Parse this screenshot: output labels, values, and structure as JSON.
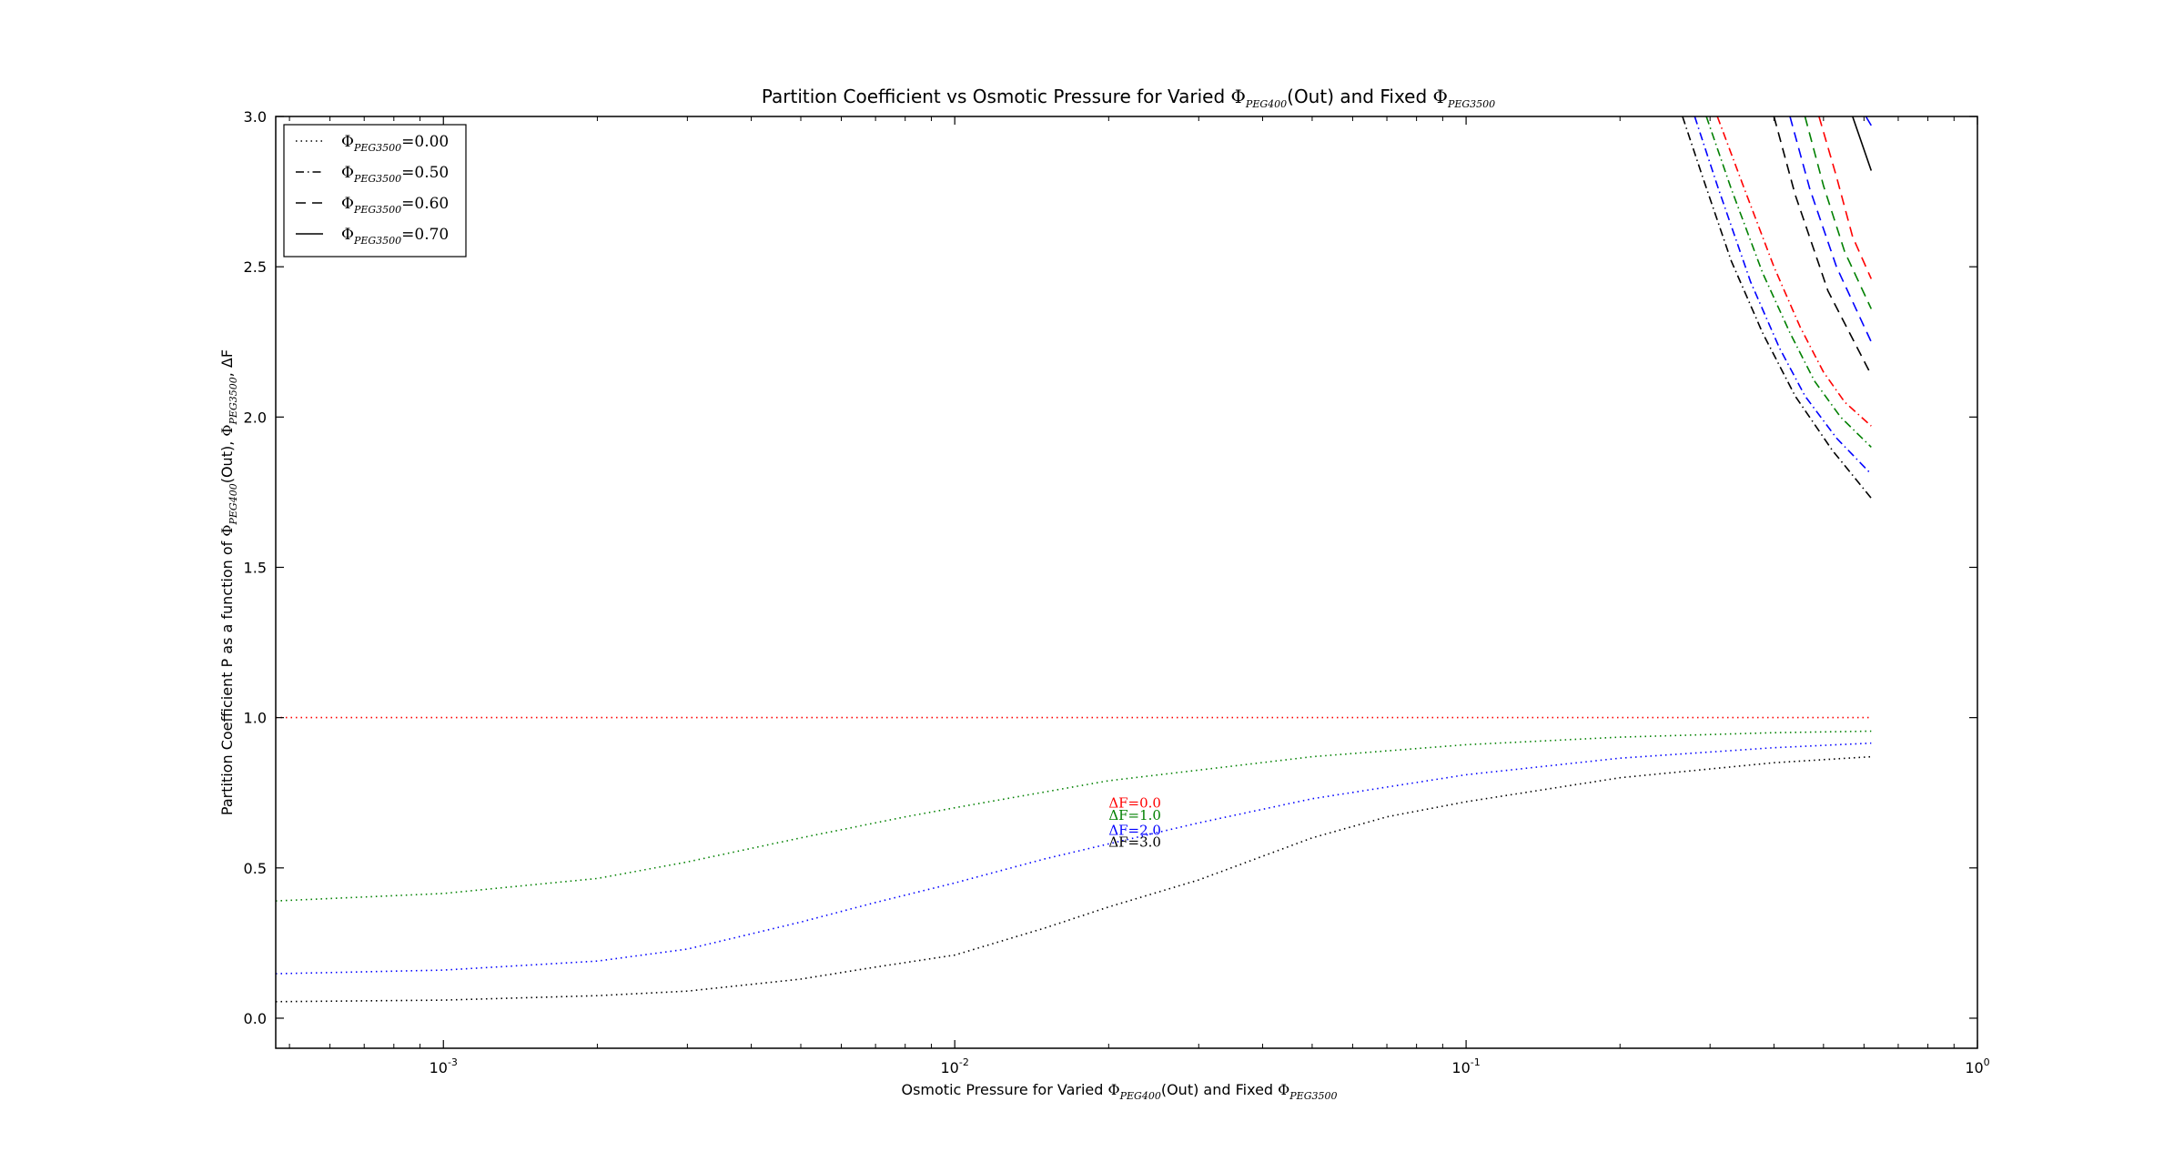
{
  "chart_data": {
    "type": "line",
    "title": {
      "prefix": "Partition Coefficient vs Osmotic Pressure for Varied ",
      "phi1": "Φ",
      "sub1": "PEG400",
      "mid": "(Out) and Fixed ",
      "phi2": "Φ",
      "sub2": "PEG3500"
    },
    "xlabel": {
      "prefix": "Osmotic Pressure for Varied ",
      "phi1": "Φ",
      "sub1": "PEG400",
      "mid": "(Out) and Fixed ",
      "phi2": "Φ",
      "sub2": "PEG3500"
    },
    "ylabel": {
      "prefix": "Partition Coefficient P as a function of ",
      "phi1": "Φ",
      "sub1": "PEG400",
      "mid": "(Out), ",
      "phi2": "Φ",
      "sub2": "PEG3500",
      "suffix": ", ΔF"
    },
    "xscale": "log",
    "xlim": [
      0.00047,
      1.0
    ],
    "ylim": [
      -0.1,
      3.0
    ],
    "xticks": [
      {
        "value": 0.001,
        "base": "10",
        "exp": "-3"
      },
      {
        "value": 0.01,
        "base": "10",
        "exp": "-2"
      },
      {
        "value": 0.1,
        "base": "10",
        "exp": "-1"
      },
      {
        "value": 1.0,
        "base": "10",
        "exp": "0"
      }
    ],
    "yticks": [
      "0.0",
      "0.5",
      "1.0",
      "1.5",
      "2.0",
      "2.5",
      "3.0"
    ],
    "grid": false,
    "legend": {
      "placement": "top-left",
      "entries": [
        {
          "phi": "Φ",
          "sub": "PEG3500",
          "eq": "=0.00",
          "dash": "dotted"
        },
        {
          "phi": "Φ",
          "sub": "PEG3500",
          "eq": "=0.50",
          "dash": "dashdot"
        },
        {
          "phi": "Φ",
          "sub": "PEG3500",
          "eq": "=0.60",
          "dash": "dashed"
        },
        {
          "phi": "Φ",
          "sub": "PEG3500",
          "eq": "=0.70",
          "dash": "solid"
        }
      ]
    },
    "annotations": [
      {
        "text": "ΔF=0.0",
        "color": "#ff0000",
        "x": 0.02,
        "y": 0.7
      },
      {
        "text": "ΔF=1.0",
        "color": "#008000",
        "x": 0.02,
        "y": 0.66
      },
      {
        "text": "ΔF=2.0",
        "color": "#0000ff",
        "x": 0.02,
        "y": 0.61
      },
      {
        "text": "ΔF=3.0",
        "color": "#000000",
        "x": 0.02,
        "y": 0.57
      }
    ],
    "colors": {
      "dF0": "#ff0000",
      "dF1": "#008000",
      "dF2": "#0000ff",
      "dF3": "#000000"
    },
    "series": [
      {
        "phi3500": 0.0,
        "dF": 0.0,
        "color": "#ff0000",
        "dash": "dotted",
        "x": [
          0.00047,
          0.001,
          0.002,
          0.005,
          0.01,
          0.02,
          0.05,
          0.1,
          0.2,
          0.4,
          0.62
        ],
        "y": [
          1.0,
          1.0,
          1.0,
          1.0,
          1.0,
          1.0,
          1.0,
          1.0,
          1.0,
          1.0,
          1.0
        ]
      },
      {
        "phi3500": 0.0,
        "dF": 1.0,
        "color": "#008000",
        "dash": "dotted",
        "x": [
          0.00047,
          0.001,
          0.002,
          0.003,
          0.005,
          0.008,
          0.01,
          0.02,
          0.05,
          0.1,
          0.2,
          0.4,
          0.62
        ],
        "y": [
          0.39,
          0.415,
          0.465,
          0.52,
          0.6,
          0.67,
          0.7,
          0.79,
          0.87,
          0.91,
          0.935,
          0.95,
          0.955
        ]
      },
      {
        "phi3500": 0.0,
        "dF": 2.0,
        "color": "#0000ff",
        "dash": "dotted",
        "x": [
          0.00047,
          0.001,
          0.002,
          0.003,
          0.005,
          0.007,
          0.01,
          0.015,
          0.02,
          0.03,
          0.05,
          0.1,
          0.2,
          0.4,
          0.62
        ],
        "y": [
          0.148,
          0.16,
          0.19,
          0.23,
          0.32,
          0.385,
          0.45,
          0.53,
          0.58,
          0.65,
          0.73,
          0.81,
          0.865,
          0.9,
          0.915
        ]
      },
      {
        "phi3500": 0.0,
        "dF": 3.0,
        "color": "#000000",
        "dash": "dotted",
        "x": [
          0.00047,
          0.001,
          0.002,
          0.003,
          0.005,
          0.007,
          0.01,
          0.015,
          0.02,
          0.03,
          0.05,
          0.07,
          0.1,
          0.2,
          0.4,
          0.62
        ],
        "y": [
          0.055,
          0.06,
          0.075,
          0.09,
          0.13,
          0.17,
          0.21,
          0.3,
          0.37,
          0.46,
          0.6,
          0.67,
          0.72,
          0.8,
          0.85,
          0.87
        ]
      },
      {
        "phi3500": 0.5,
        "dF": 0.0,
        "color": "#ff0000",
        "dash": "dashdot",
        "x": [
          0.31,
          0.35,
          0.4,
          0.45,
          0.5,
          0.55,
          0.62
        ],
        "y": [
          3.0,
          2.76,
          2.5,
          2.3,
          2.15,
          2.05,
          1.97
        ]
      },
      {
        "phi3500": 0.5,
        "dF": 1.0,
        "color": "#008000",
        "dash": "dashdot",
        "x": [
          0.295,
          0.33,
          0.38,
          0.43,
          0.48,
          0.54,
          0.62
        ],
        "y": [
          3.0,
          2.76,
          2.48,
          2.28,
          2.12,
          2.0,
          1.9
        ]
      },
      {
        "phi3500": 0.5,
        "dF": 2.0,
        "color": "#0000ff",
        "dash": "dashdot",
        "x": [
          0.28,
          0.31,
          0.36,
          0.41,
          0.46,
          0.53,
          0.62
        ],
        "y": [
          3.0,
          2.77,
          2.45,
          2.23,
          2.07,
          1.93,
          1.81
        ]
      },
      {
        "phi3500": 0.5,
        "dF": 3.0,
        "color": "#000000",
        "dash": "dashdot",
        "x": [
          0.265,
          0.29,
          0.33,
          0.38,
          0.44,
          0.52,
          0.62
        ],
        "y": [
          3.0,
          2.8,
          2.52,
          2.28,
          2.07,
          1.89,
          1.73
        ]
      },
      {
        "phi3500": 0.6,
        "dF": 0.0,
        "color": "#ff0000",
        "dash": "dashed",
        "x": [
          0.49,
          0.53,
          0.57,
          0.62
        ],
        "y": [
          3.0,
          2.8,
          2.6,
          2.46
        ]
      },
      {
        "phi3500": 0.6,
        "dF": 1.0,
        "color": "#008000",
        "dash": "dashed",
        "x": [
          0.46,
          0.5,
          0.55,
          0.62
        ],
        "y": [
          3.0,
          2.77,
          2.55,
          2.36
        ]
      },
      {
        "phi3500": 0.6,
        "dF": 2.0,
        "color": "#0000ff",
        "dash": "dashed",
        "x": [
          0.43,
          0.47,
          0.53,
          0.62
        ],
        "y": [
          3.0,
          2.76,
          2.5,
          2.25
        ]
      },
      {
        "phi3500": 0.6,
        "dF": 3.0,
        "color": "#000000",
        "dash": "dashed",
        "x": [
          0.4,
          0.44,
          0.51,
          0.62
        ],
        "y": [
          3.0,
          2.74,
          2.42,
          2.14
        ]
      },
      {
        "phi3500": 0.7,
        "dF": 2.0,
        "color": "#0000ff",
        "dash": "solid",
        "x": [
          0.605,
          0.62
        ],
        "y": [
          3.0,
          2.97
        ]
      },
      {
        "phi3500": 0.7,
        "dF": 3.0,
        "color": "#000000",
        "dash": "solid",
        "x": [
          0.57,
          0.62
        ],
        "y": [
          3.0,
          2.82
        ]
      }
    ]
  }
}
